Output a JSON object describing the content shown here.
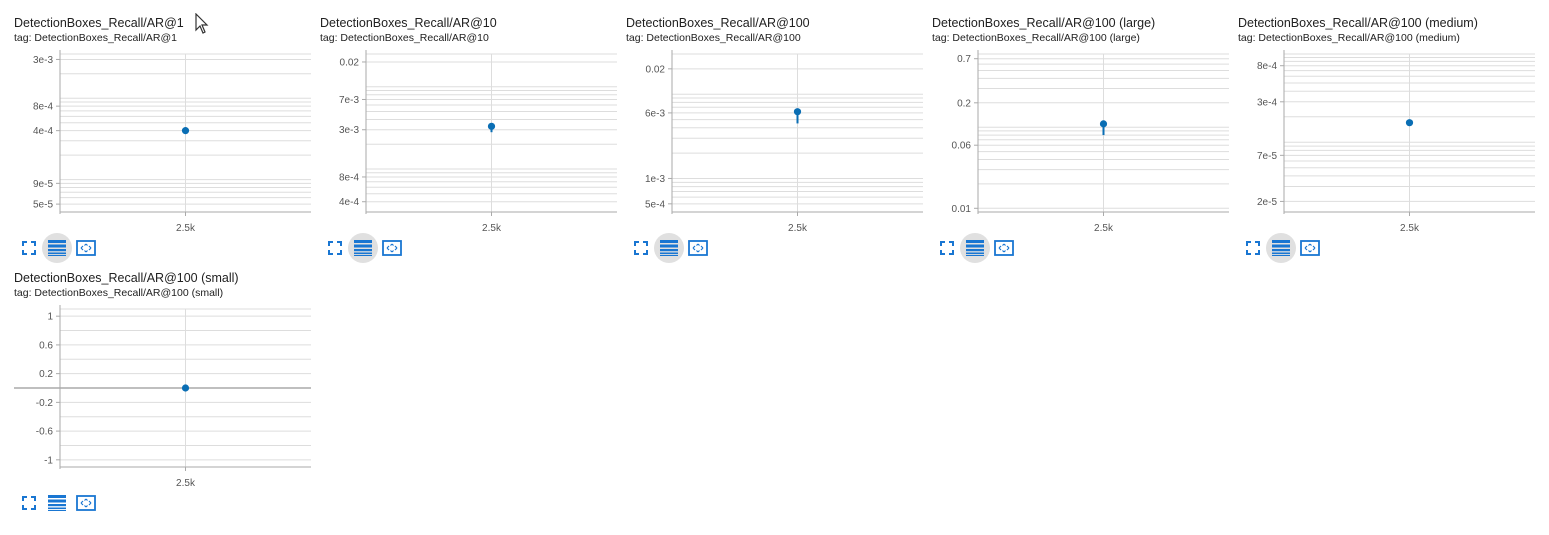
{
  "colors": {
    "accent": "#1976d2",
    "series": "#0a6eb4",
    "grid": "#dddddd",
    "axis": "#aaaaaa"
  },
  "icons": {
    "fullscreen": "fullscreen-icon",
    "log_scale": "log-scale-icon",
    "fit_domain": "fit-domain-icon"
  },
  "cards": [
    {
      "title": "DetectionBoxes_Recall/AR@1",
      "tag": "tag: DetectionBoxes_Recall/AR@1",
      "log_scale_active": true
    },
    {
      "title": "DetectionBoxes_Recall/AR@10",
      "tag": "tag: DetectionBoxes_Recall/AR@10",
      "log_scale_active": true
    },
    {
      "title": "DetectionBoxes_Recall/AR@100",
      "tag": "tag: DetectionBoxes_Recall/AR@100",
      "log_scale_active": true
    },
    {
      "title": "DetectionBoxes_Recall/AR@100 (large)",
      "tag": "tag: DetectionBoxes_Recall/AR@100 (large)",
      "log_scale_active": true
    },
    {
      "title": "DetectionBoxes_Recall/AR@100 (medium)",
      "tag": "tag: DetectionBoxes_Recall/AR@100 (medium)",
      "log_scale_active": true
    },
    {
      "title": "DetectionBoxes_Recall/AR@100 (small)",
      "tag": "tag: DetectionBoxes_Recall/AR@100 (small)",
      "log_scale_active": false
    }
  ],
  "chart_data": [
    {
      "type": "scatter",
      "scale": "log",
      "ylim": [
        4e-05,
        0.0035
      ],
      "ytick_values": [
        5e-05,
        9e-05,
        0.0004,
        0.0008,
        0.003
      ],
      "ytick_labels": [
        "5e-5",
        "9e-5",
        "4e-4",
        "8e-4",
        "3e-3"
      ],
      "x_tick_label": "2.5k",
      "x": [
        2500
      ],
      "y": [
        0.0004
      ],
      "error_low": null
    },
    {
      "type": "scatter",
      "scale": "log",
      "ylim": [
        0.0003,
        0.025
      ],
      "ytick_values": [
        0.0004,
        0.0008,
        0.003,
        0.007,
        0.02
      ],
      "ytick_labels": [
        "4e-4",
        "8e-4",
        "3e-3",
        "7e-3",
        "0.02"
      ],
      "x_tick_label": "2.5k",
      "x": [
        2500
      ],
      "y": [
        0.0033
      ],
      "error_low": 0.0028
    },
    {
      "type": "scatter",
      "scale": "log",
      "ylim": [
        0.0004,
        0.03
      ],
      "ytick_values": [
        0.0005,
        0.001,
        0.006,
        0.02
      ],
      "ytick_labels": [
        "5e-4",
        "1e-3",
        "6e-3",
        "0.02"
      ],
      "x_tick_label": "2.5k",
      "x": [
        2500
      ],
      "y": [
        0.0062
      ],
      "error_low": 0.0045
    },
    {
      "type": "scatter",
      "scale": "log",
      "ylim": [
        0.009,
        0.8
      ],
      "ytick_values": [
        0.01,
        0.06,
        0.2,
        0.7
      ],
      "ytick_labels": [
        "0.01",
        "0.06",
        "0.2",
        "0.7"
      ],
      "x_tick_label": "2.5k",
      "x": [
        2500
      ],
      "y": [
        0.11
      ],
      "error_low": 0.08
    },
    {
      "type": "scatter",
      "scale": "log",
      "ylim": [
        1.5e-05,
        0.0011
      ],
      "ytick_values": [
        2e-05,
        7e-05,
        0.0003,
        0.0008
      ],
      "ytick_labels": [
        "2e-5",
        "7e-5",
        "3e-4",
        "8e-4"
      ],
      "x_tick_label": "2.5k",
      "x": [
        2500
      ],
      "y": [
        0.00017
      ],
      "error_low": null
    },
    {
      "type": "scatter",
      "scale": "linear",
      "ylim": [
        -1.1,
        1.1
      ],
      "ytick_values": [
        1,
        0.6,
        0.2,
        -0.2,
        -0.6,
        -1
      ],
      "ytick_labels": [
        "1",
        "0.6",
        "0.2",
        "-0.2",
        "-0.6",
        "-1"
      ],
      "x_tick_label": "2.5k",
      "x": [
        2500
      ],
      "y": [
        0
      ],
      "error_low": null
    }
  ]
}
